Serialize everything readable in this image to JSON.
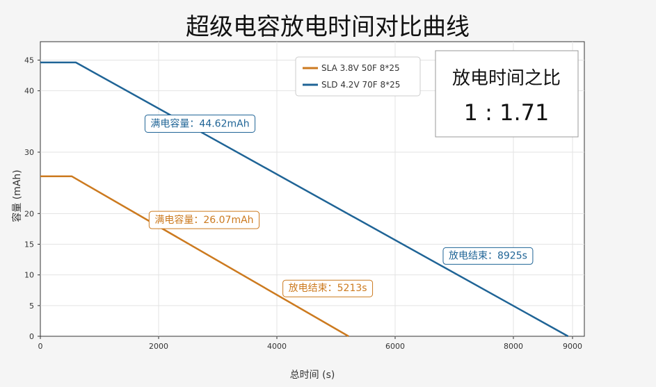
{
  "chart_data": {
    "type": "line",
    "title": "超级电容放电时间对比曲线",
    "xlabel": "总时间 (s)",
    "ylabel": "容量 (mAh)",
    "xlim": [
      0,
      9200
    ],
    "ylim": [
      0,
      48
    ],
    "xticks": [
      0,
      2000,
      4000,
      6000,
      8000,
      9000
    ],
    "yticks": [
      0,
      5,
      10,
      15,
      20,
      30,
      40,
      45
    ],
    "grid": true,
    "legend_position": "top",
    "series": [
      {
        "name": "SLA 3.8V 50F 8*25",
        "color": "#cc7a1f",
        "x": [
          0,
          530,
          5213
        ],
        "y": [
          26.07,
          26.07,
          0
        ]
      },
      {
        "name": "SLD 4.2V 70F 8*25",
        "color": "#1f6496",
        "x": [
          0,
          600,
          8925
        ],
        "y": [
          44.62,
          44.62,
          0
        ]
      }
    ],
    "annotations": [
      {
        "text": "满电容量：44.62mAh",
        "x": 2700,
        "y": 34.7,
        "series": 1
      },
      {
        "text": "放电结束：8925s",
        "x": 7570,
        "y": 13.2,
        "series": 1
      },
      {
        "text": "满电容量：26.07mAh",
        "x": 2770,
        "y": 19.0,
        "series": 0
      },
      {
        "text": "放电结束：5213s",
        "x": 4860,
        "y": 7.9,
        "series": 0
      }
    ],
    "info_box": {
      "title": "放电时间之比",
      "ratio": "1 : 1.71"
    }
  }
}
